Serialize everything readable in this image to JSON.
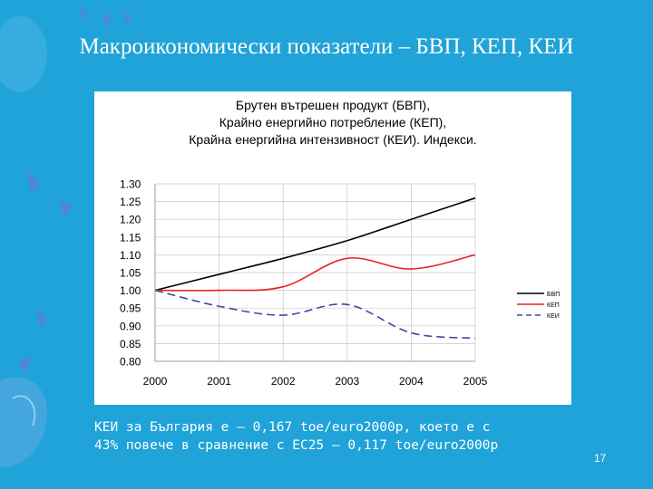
{
  "slide": {
    "title": "Макроикономически показатели – БВП, КЕП, КЕИ",
    "caption_lines": [
      "КЕИ за България е – 0,167 toe/euro2000р, което е с",
      "43% повече в сравнение с ЕС25 – 0,117 toe/euro2000р"
    ],
    "page_number": "17"
  },
  "chart_data": {
    "type": "line",
    "title_lines": [
      "Брутен вътрешен продукт (БВП),",
      "Крайно енергийно потребление (КЕП),",
      "Крайна енергийна интензивност (КЕИ). Индекси."
    ],
    "x": [
      "2000",
      "2001",
      "2002",
      "2003",
      "2004",
      "2005"
    ],
    "y_ticks": [
      "1.30",
      "1.25",
      "1.20",
      "1.15",
      "1.10",
      "1.05",
      "1.00",
      "0.95",
      "0.90",
      "0.85",
      "0.80"
    ],
    "ylim": [
      0.8,
      1.3
    ],
    "grid": true,
    "legend_position": "right",
    "series": [
      {
        "name": "БВП",
        "color": "#000000",
        "style": "solid",
        "values": [
          1.0,
          1.045,
          1.09,
          1.14,
          1.2,
          1.26
        ]
      },
      {
        "name": "КЕП",
        "color": "#e8201f",
        "style": "solid",
        "values": [
          1.0,
          1.0,
          1.01,
          1.09,
          1.06,
          1.1
        ]
      },
      {
        "name": "КЕИ",
        "color": "#3a4aa6",
        "style": "dashed",
        "values": [
          1.0,
          0.955,
          0.93,
          0.96,
          0.88,
          0.865
        ]
      }
    ]
  }
}
